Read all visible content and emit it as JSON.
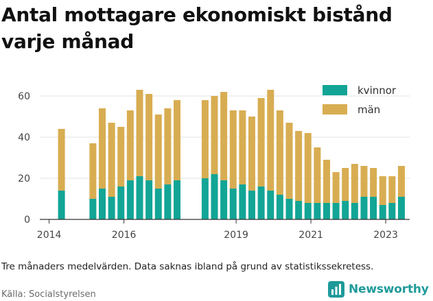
{
  "title": "Antal mottagare ekonomiskt bistånd varje månad",
  "caption": "Tre månaders medelvärden. Data saknas ibland på grund av statistikssekretess.",
  "source": "Källa: Socialstyrelsen",
  "brand": "Newsworthy",
  "colors": {
    "kvinnor": "#12a596",
    "man": "#d8ad52",
    "grid": "#e3e3e3",
    "axis": "#333333",
    "brand": "#1f9a9a"
  },
  "chart_data": {
    "type": "bar",
    "stacked": true,
    "title": "Antal mottagare ekonomiskt bistånd varje månad",
    "xlabel": "",
    "ylabel": "",
    "ylim": [
      0,
      65
    ],
    "xlim": [
      2013.75,
      2023.2
    ],
    "yticks": [
      0,
      20,
      40,
      60
    ],
    "xticks": [
      2014,
      2016,
      2019,
      2021,
      2023
    ],
    "grid": true,
    "legend_position": "top-right",
    "series": [
      {
        "name": "kvinnor",
        "color": "#12a596",
        "points": [
          [
            2014.33,
            14
          ],
          [
            2015.17,
            10
          ],
          [
            2015.42,
            15
          ],
          [
            2015.67,
            11
          ],
          [
            2015.92,
            16
          ],
          [
            2016.17,
            19
          ],
          [
            2016.42,
            21
          ],
          [
            2016.67,
            19
          ],
          [
            2016.92,
            15
          ],
          [
            2017.17,
            17
          ],
          [
            2017.42,
            19
          ],
          [
            2018.17,
            20
          ],
          [
            2018.42,
            22
          ],
          [
            2018.67,
            19
          ],
          [
            2018.92,
            15
          ],
          [
            2019.17,
            17
          ],
          [
            2019.42,
            14
          ],
          [
            2019.67,
            16
          ],
          [
            2019.92,
            14
          ],
          [
            2020.17,
            12
          ],
          [
            2020.42,
            10
          ],
          [
            2020.67,
            9
          ],
          [
            2020.92,
            8
          ],
          [
            2021.17,
            8
          ],
          [
            2021.42,
            8
          ],
          [
            2021.67,
            8
          ],
          [
            2021.92,
            9
          ],
          [
            2022.17,
            8
          ],
          [
            2022.42,
            11
          ],
          [
            2022.67,
            11
          ],
          [
            2022.92,
            7
          ],
          [
            2023.17,
            8
          ],
          [
            2023.42,
            11
          ]
        ]
      },
      {
        "name": "män",
        "color": "#d8ad52",
        "points": [
          [
            2014.33,
            30
          ],
          [
            2015.17,
            27
          ],
          [
            2015.42,
            39
          ],
          [
            2015.67,
            36
          ],
          [
            2015.92,
            29
          ],
          [
            2016.17,
            34
          ],
          [
            2016.42,
            42
          ],
          [
            2016.67,
            42
          ],
          [
            2016.92,
            36
          ],
          [
            2017.17,
            37
          ],
          [
            2017.42,
            39
          ],
          [
            2018.17,
            38
          ],
          [
            2018.42,
            38
          ],
          [
            2018.67,
            43
          ],
          [
            2018.92,
            38
          ],
          [
            2019.17,
            36
          ],
          [
            2019.42,
            36
          ],
          [
            2019.67,
            43
          ],
          [
            2019.92,
            49
          ],
          [
            2020.17,
            41
          ],
          [
            2020.42,
            37
          ],
          [
            2020.67,
            34
          ],
          [
            2020.92,
            34
          ],
          [
            2021.17,
            27
          ],
          [
            2021.42,
            21
          ],
          [
            2021.67,
            15
          ],
          [
            2021.92,
            16
          ],
          [
            2022.17,
            19
          ],
          [
            2022.42,
            15
          ],
          [
            2022.67,
            14
          ],
          [
            2022.92,
            14
          ],
          [
            2023.17,
            13
          ],
          [
            2023.42,
            15
          ]
        ]
      }
    ]
  }
}
